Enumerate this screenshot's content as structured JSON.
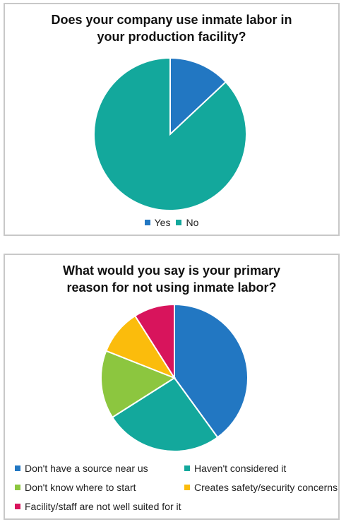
{
  "chart_data": [
    {
      "type": "pie",
      "title": "Does your company use inmate labor in your production facility?",
      "categories": [
        "Yes",
        "No"
      ],
      "values": [
        13,
        87
      ],
      "colors": [
        "#2277c2",
        "#13a89c"
      ]
    },
    {
      "type": "pie",
      "title": "What would you say is your primary reason for not using inmate labor?",
      "categories": [
        "Don't have a source near us",
        "Haven't considered it",
        "Don't know where to start",
        "Creates safety/security concerns",
        "Facility/staff are not well suited for it"
      ],
      "values": [
        40,
        26,
        15,
        10,
        9
      ],
      "colors": [
        "#2277c2",
        "#13a89c",
        "#8cc63f",
        "#fbbc0c",
        "#d8145c"
      ]
    }
  ]
}
